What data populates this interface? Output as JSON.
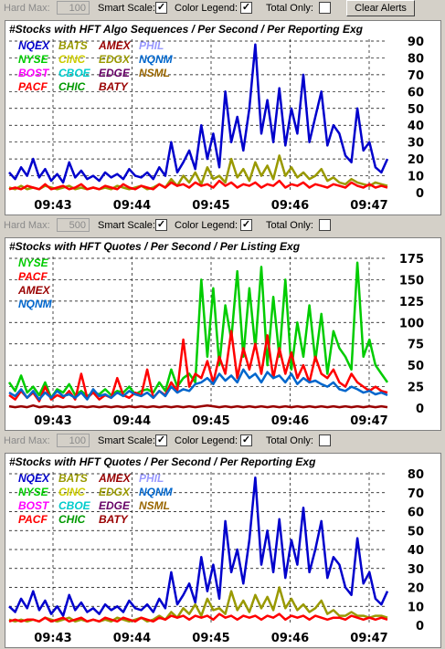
{
  "toolbars": [
    {
      "hard_max_label": "Hard Max:",
      "hard_max_value": "100",
      "smart_scale_label": "Smart Scale:",
      "color_legend_label": "Color Legend:",
      "total_only_label": "Total Only:",
      "smart_scale_checked": true,
      "color_legend_checked": true,
      "total_only_checked": false,
      "clear_alerts_label": "Clear Alerts"
    },
    {
      "hard_max_label": "Hard Max:",
      "hard_max_value": "500",
      "smart_scale_label": "Smart Scale:",
      "color_legend_label": "Color Legend:",
      "total_only_label": "Total Only:",
      "smart_scale_checked": true,
      "color_legend_checked": true,
      "total_only_checked": false
    },
    {
      "hard_max_label": "Hard Max:",
      "hard_max_value": "100",
      "smart_scale_label": "Smart Scale:",
      "color_legend_label": "Color Legend:",
      "total_only_label": "Total Only:",
      "smart_scale_checked": true,
      "color_legend_checked": true,
      "total_only_checked": false
    }
  ],
  "check_mark": "✓",
  "chart_data": [
    {
      "type": "line",
      "title": "#Stocks with HFT Algo Sequences / Per Second / Per Reporting Exg",
      "x_ticks": [
        "09:43",
        "09:44",
        "09:45",
        "09:46",
        "09:47"
      ],
      "y_ticks": [
        0,
        10,
        20,
        30,
        40,
        50,
        60,
        70,
        80,
        90
      ],
      "ylim": [
        0,
        90
      ],
      "grid": true,
      "legend": [
        {
          "name": "NQEX",
          "color": "#0000cc"
        },
        {
          "name": "BATS",
          "color": "#999900"
        },
        {
          "name": "AMEX",
          "color": "#990000"
        },
        {
          "name": "PHIL",
          "color": "#9999ff"
        },
        {
          "name": "NYSE",
          "color": "#00cc00"
        },
        {
          "name": "CINC",
          "color": "#cccc00"
        },
        {
          "name": "EDGX",
          "color": "#999900"
        },
        {
          "name": "NQNM",
          "color": "#0066cc"
        },
        {
          "name": "BOST",
          "color": "#ff00ff"
        },
        {
          "name": "CBOE",
          "color": "#00cccc"
        },
        {
          "name": "EDGE",
          "color": "#660066"
        },
        {
          "name": "NSML",
          "color": "#996600"
        },
        {
          "name": "PACF",
          "color": "#ff0000"
        },
        {
          "name": "CHIC",
          "color": "#009900"
        },
        {
          "name": "BATY",
          "color": "#990000"
        }
      ],
      "series": [
        {
          "name": "NQEX",
          "values": [
            12,
            8,
            15,
            10,
            20,
            9,
            14,
            7,
            11,
            6,
            18,
            9,
            13,
            8,
            10,
            7,
            12,
            9,
            11,
            8,
            14,
            10,
            9,
            12,
            8,
            15,
            10,
            30,
            12,
            18,
            25,
            14,
            40,
            20,
            35,
            15,
            60,
            30,
            45,
            25,
            50,
            88,
            35,
            55,
            30,
            62,
            28,
            50,
            35,
            70,
            30,
            45,
            60,
            28,
            40,
            35,
            22,
            18,
            50,
            25,
            30,
            15,
            12,
            20
          ]
        },
        {
          "name": "BATS",
          "values": [
            3,
            2,
            4,
            2,
            3,
            2,
            4,
            3,
            2,
            3,
            4,
            2,
            3,
            2,
            3,
            2,
            3,
            2,
            4,
            3,
            2,
            3,
            4,
            2,
            3,
            5,
            3,
            8,
            4,
            10,
            6,
            12,
            5,
            15,
            8,
            10,
            6,
            20,
            9,
            14,
            7,
            18,
            10,
            16,
            8,
            22,
            10,
            15,
            9,
            12,
            8,
            10,
            14,
            7,
            9,
            6,
            5,
            8,
            6,
            5,
            4,
            6,
            5,
            4
          ]
        },
        {
          "name": "PACF",
          "values": [
            2,
            3,
            2,
            4,
            3,
            2,
            5,
            2,
            3,
            4,
            2,
            3,
            5,
            2,
            3,
            2,
            4,
            3,
            2,
            5,
            3,
            2,
            4,
            3,
            2,
            5,
            3,
            6,
            4,
            5,
            3,
            6,
            4,
            5,
            3,
            7,
            4,
            6,
            3,
            5,
            4,
            6,
            3,
            5,
            4,
            7,
            3,
            5,
            4,
            6,
            3,
            5,
            4,
            3,
            5,
            4,
            3,
            6,
            4,
            3,
            5,
            3,
            4,
            3
          ]
        }
      ]
    },
    {
      "type": "line",
      "title": "#Stocks with HFT Quotes / Per Second / Per Listing Exg",
      "x_ticks": [
        "09:43",
        "09:44",
        "09:45",
        "09:46",
        "09:47"
      ],
      "y_ticks": [
        0,
        25,
        50,
        75,
        100,
        125,
        150,
        175
      ],
      "ylim": [
        0,
        175
      ],
      "grid": true,
      "legend": [
        {
          "name": "NYSE",
          "color": "#00cc00"
        },
        {
          "name": "PACF",
          "color": "#ff0000"
        },
        {
          "name": "AMEX",
          "color": "#990000"
        },
        {
          "name": "NQNM",
          "color": "#0066cc"
        }
      ],
      "series": [
        {
          "name": "NYSE",
          "values": [
            30,
            20,
            38,
            18,
            25,
            15,
            30,
            12,
            22,
            18,
            28,
            15,
            20,
            14,
            18,
            16,
            22,
            15,
            20,
            18,
            25,
            16,
            20,
            22,
            18,
            30,
            20,
            45,
            25,
            35,
            40,
            30,
            150,
            60,
            140,
            50,
            120,
            80,
            160,
            60,
            140,
            70,
            165,
            50,
            130,
            60,
            150,
            45,
            100,
            60,
            120,
            55,
            110,
            40,
            90,
            70,
            60,
            45,
            170,
            60,
            80,
            50,
            40,
            30
          ]
        },
        {
          "name": "PACF",
          "values": [
            15,
            10,
            20,
            12,
            18,
            8,
            25,
            10,
            15,
            12,
            20,
            10,
            40,
            12,
            18,
            10,
            15,
            12,
            35,
            15,
            12,
            18,
            15,
            45,
            12,
            20,
            15,
            30,
            20,
            80,
            25,
            40,
            35,
            55,
            30,
            60,
            40,
            90,
            35,
            70,
            45,
            75,
            40,
            85,
            35,
            70,
            40,
            65,
            35,
            50,
            30,
            60,
            40,
            35,
            45,
            30,
            25,
            40,
            30,
            25,
            20,
            25,
            20,
            18
          ]
        },
        {
          "name": "NQNM",
          "values": [
            18,
            14,
            22,
            12,
            20,
            10,
            18,
            12,
            20,
            14,
            16,
            12,
            18,
            10,
            22,
            14,
            16,
            12,
            18,
            14,
            20,
            16,
            14,
            18,
            12,
            20,
            14,
            25,
            18,
            22,
            20,
            28,
            30,
            35,
            28,
            40,
            32,
            38,
            30,
            45,
            35,
            40,
            30,
            42,
            35,
            38,
            30,
            40,
            28,
            35,
            30,
            32,
            28,
            25,
            30,
            22,
            20,
            25,
            22,
            18,
            20,
            16,
            18,
            15
          ]
        },
        {
          "name": "AMEX",
          "values": [
            2,
            1,
            2,
            1,
            3,
            1,
            2,
            1,
            2,
            1,
            2,
            1,
            2,
            1,
            2,
            1,
            2,
            1,
            2,
            1,
            2,
            1,
            2,
            1,
            2,
            1,
            2,
            1,
            2,
            1,
            2,
            1,
            2,
            3,
            2,
            1,
            2,
            1,
            2,
            1,
            2,
            1,
            2,
            1,
            2,
            1,
            2,
            1,
            2,
            1,
            2,
            1,
            2,
            1,
            2,
            1,
            2,
            1,
            2,
            1,
            2,
            1,
            2,
            1
          ]
        }
      ]
    },
    {
      "type": "line",
      "title": "#Stocks with HFT Quotes / Per Second / Per Reporting Exg",
      "x_ticks": [
        "09:43",
        "09:44",
        "09:45",
        "09:46",
        "09:47"
      ],
      "y_ticks": [
        0,
        10,
        20,
        30,
        40,
        50,
        60,
        70,
        80
      ],
      "ylim": [
        0,
        80
      ],
      "grid": true,
      "legend": [
        {
          "name": "NQEX",
          "color": "#0000cc"
        },
        {
          "name": "BATS",
          "color": "#999900"
        },
        {
          "name": "AMEX",
          "color": "#990000"
        },
        {
          "name": "PHIL",
          "color": "#9999ff"
        },
        {
          "name": "NYSE",
          "color": "#00cc00"
        },
        {
          "name": "CINC",
          "color": "#cccc00"
        },
        {
          "name": "EDGX",
          "color": "#999900"
        },
        {
          "name": "NQNM",
          "color": "#0066cc"
        },
        {
          "name": "BOST",
          "color": "#ff00ff"
        },
        {
          "name": "CBOE",
          "color": "#00cccc"
        },
        {
          "name": "EDGE",
          "color": "#660066"
        },
        {
          "name": "NSML",
          "color": "#996600"
        },
        {
          "name": "PACF",
          "color": "#ff0000"
        },
        {
          "name": "CHIC",
          "color": "#009900"
        },
        {
          "name": "BATY",
          "color": "#990000"
        }
      ],
      "series": [
        {
          "name": "NQEX",
          "values": [
            10,
            7,
            14,
            9,
            18,
            8,
            13,
            6,
            10,
            5,
            16,
            8,
            12,
            7,
            9,
            6,
            11,
            8,
            10,
            7,
            13,
            9,
            8,
            11,
            7,
            14,
            9,
            28,
            11,
            16,
            22,
            12,
            36,
            18,
            32,
            14,
            55,
            28,
            40,
            22,
            45,
            78,
            32,
            50,
            28,
            56,
            25,
            45,
            32,
            62,
            28,
            40,
            55,
            25,
            36,
            32,
            20,
            16,
            46,
            22,
            28,
            14,
            11,
            18
          ]
        },
        {
          "name": "BATS",
          "values": [
            3,
            2,
            3,
            2,
            3,
            2,
            4,
            3,
            2,
            3,
            4,
            2,
            3,
            2,
            3,
            2,
            3,
            2,
            4,
            3,
            2,
            3,
            4,
            2,
            3,
            5,
            3,
            7,
            4,
            9,
            6,
            11,
            5,
            14,
            8,
            9,
            6,
            18,
            8,
            13,
            7,
            16,
            9,
            15,
            8,
            20,
            9,
            14,
            8,
            11,
            7,
            9,
            13,
            6,
            8,
            5,
            5,
            7,
            5,
            5,
            4,
            5,
            5,
            4
          ]
        },
        {
          "name": "PACF",
          "values": [
            2,
            3,
            2,
            3,
            3,
            2,
            4,
            2,
            3,
            4,
            2,
            3,
            4,
            2,
            3,
            2,
            4,
            3,
            2,
            4,
            3,
            2,
            4,
            3,
            2,
            4,
            3,
            5,
            4,
            5,
            3,
            5,
            4,
            5,
            3,
            6,
            4,
            5,
            3,
            5,
            4,
            5,
            3,
            5,
            4,
            6,
            3,
            5,
            4,
            5,
            3,
            5,
            4,
            3,
            4,
            4,
            3,
            5,
            4,
            3,
            4,
            3,
            4,
            3
          ]
        }
      ]
    }
  ]
}
